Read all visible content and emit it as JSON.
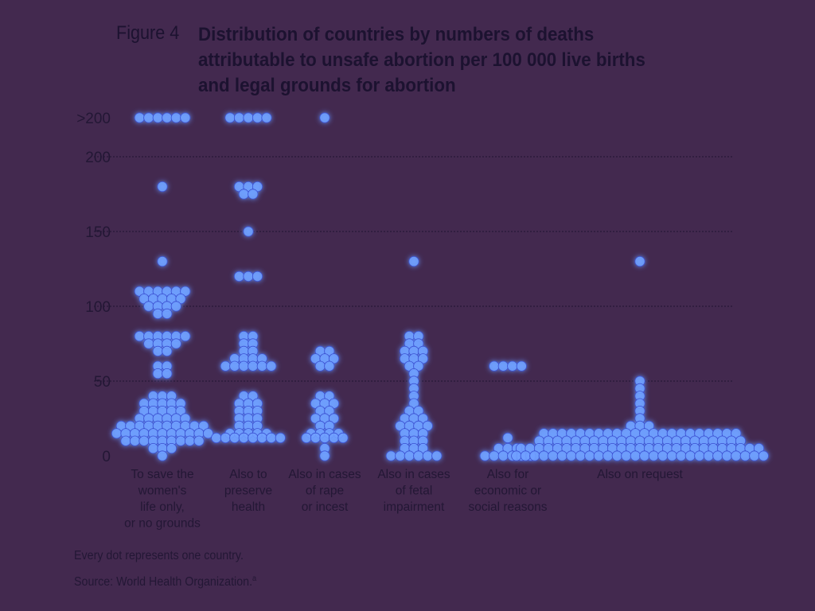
{
  "figure_label": "Figure 4",
  "title_lines": [
    "Distribution of countries by numbers of deaths",
    "attributable to unsafe abortion per 100 000 live births",
    "and legal grounds for abortion"
  ],
  "note": "Every dot represents one country.",
  "source": "Source: World Health Organization.",
  "source_marker": "a",
  "colors": {
    "background": "#43294f",
    "dot_glow": "#4c6cff",
    "dot_core": "#6fa0ff",
    "dot_edge": "#3b4fd0",
    "gridline": "#1f1430",
    "text": "#231735"
  },
  "chart_data": {
    "type": "scatter",
    "title": "Distribution of countries by numbers of deaths attributable to unsafe abortion per 100 000 live births and legal grounds for abortion",
    "xlabel": "",
    "ylabel": "",
    "y_ticks": [
      0,
      50,
      100,
      150,
      200
    ],
    "y_tick_labels": [
      "0",
      "50",
      "100",
      "150",
      "200"
    ],
    "overflow_label": ">200",
    "ylim": [
      0,
      200
    ],
    "grid": true,
    "categories": [
      {
        "label_lines": [
          "To save the",
          "women's",
          "life only,",
          "or no grounds"
        ],
        "bins": [
          {
            "value": 210,
            "count": 6
          },
          {
            "value": 180,
            "count": 1
          },
          {
            "value": 130,
            "count": 1
          },
          {
            "value": 110,
            "count": 6
          },
          {
            "value": 105,
            "count": 5
          },
          {
            "value": 100,
            "count": 4
          },
          {
            "value": 95,
            "count": 2
          },
          {
            "value": 80,
            "count": 6
          },
          {
            "value": 75,
            "count": 4
          },
          {
            "value": 70,
            "count": 2
          },
          {
            "value": 60,
            "count": 2
          },
          {
            "value": 55,
            "count": 2
          },
          {
            "value": 40,
            "count": 3
          },
          {
            "value": 35,
            "count": 5
          },
          {
            "value": 30,
            "count": 5
          },
          {
            "value": 25,
            "count": 6
          },
          {
            "value": 20,
            "count": 10
          },
          {
            "value": 15,
            "count": 11
          },
          {
            "value": 10,
            "count": 9
          },
          {
            "value": 5,
            "count": 3
          },
          {
            "value": 0,
            "count": 1
          }
        ]
      },
      {
        "label_lines": [
          "Also to",
          "preserve",
          "health"
        ],
        "bins": [
          {
            "value": 210,
            "count": 5
          },
          {
            "value": 180,
            "count": 3
          },
          {
            "value": 175,
            "count": 2
          },
          {
            "value": 150,
            "count": 1
          },
          {
            "value": 120,
            "count": 3
          },
          {
            "value": 80,
            "count": 2
          },
          {
            "value": 75,
            "count": 2
          },
          {
            "value": 70,
            "count": 2
          },
          {
            "value": 65,
            "count": 4
          },
          {
            "value": 60,
            "count": 6
          },
          {
            "value": 40,
            "count": 2
          },
          {
            "value": 35,
            "count": 3
          },
          {
            "value": 30,
            "count": 3
          },
          {
            "value": 25,
            "count": 3
          },
          {
            "value": 20,
            "count": 3
          },
          {
            "value": 15,
            "count": 5
          },
          {
            "value": 12,
            "count": 8
          }
        ]
      },
      {
        "label_lines": [
          "Also in cases",
          "of rape",
          "or incest"
        ],
        "bins": [
          {
            "value": 210,
            "count": 1
          },
          {
            "value": 70,
            "count": 2
          },
          {
            "value": 65,
            "count": 3
          },
          {
            "value": 60,
            "count": 2
          },
          {
            "value": 40,
            "count": 2
          },
          {
            "value": 35,
            "count": 3
          },
          {
            "value": 30,
            "count": 2
          },
          {
            "value": 25,
            "count": 3
          },
          {
            "value": 20,
            "count": 2
          },
          {
            "value": 15,
            "count": 4
          },
          {
            "value": 12,
            "count": 5
          },
          {
            "value": 5,
            "count": 1
          },
          {
            "value": 0,
            "count": 1
          }
        ]
      },
      {
        "label_lines": [
          "Also in cases",
          "of fetal",
          "impairment"
        ],
        "bins": [
          {
            "value": 130,
            "count": 1
          },
          {
            "value": 80,
            "count": 2
          },
          {
            "value": 75,
            "count": 2
          },
          {
            "value": 70,
            "count": 3
          },
          {
            "value": 65,
            "count": 3
          },
          {
            "value": 60,
            "count": 2
          },
          {
            "value": 55,
            "count": 1
          },
          {
            "value": 50,
            "count": 1
          },
          {
            "value": 45,
            "count": 1
          },
          {
            "value": 40,
            "count": 1
          },
          {
            "value": 35,
            "count": 1
          },
          {
            "value": 30,
            "count": 2
          },
          {
            "value": 25,
            "count": 3
          },
          {
            "value": 20,
            "count": 4
          },
          {
            "value": 15,
            "count": 3
          },
          {
            "value": 10,
            "count": 3
          },
          {
            "value": 5,
            "count": 3
          },
          {
            "value": 0,
            "count": 6
          }
        ]
      },
      {
        "label_lines": [
          "Also for",
          "economic or",
          "social reasons"
        ],
        "bins": [
          {
            "value": 60,
            "count": 4
          },
          {
            "value": 12,
            "count": 1
          },
          {
            "value": 5,
            "count": 3
          },
          {
            "value": 0,
            "count": 6
          }
        ]
      },
      {
        "label_lines": [
          "Also on request"
        ],
        "bins": [
          {
            "value": 130,
            "count": 1
          },
          {
            "value": 50,
            "count": 1
          },
          {
            "value": 45,
            "count": 1
          },
          {
            "value": 40,
            "count": 1
          },
          {
            "value": 35,
            "count": 1
          },
          {
            "value": 30,
            "count": 1
          },
          {
            "value": 25,
            "count": 1
          },
          {
            "value": 20,
            "count": 3
          },
          {
            "value": 15,
            "count": 22
          },
          {
            "value": 10,
            "count": 23
          },
          {
            "value": 5,
            "count": 27
          },
          {
            "value": 0,
            "count": 28
          }
        ]
      }
    ]
  }
}
